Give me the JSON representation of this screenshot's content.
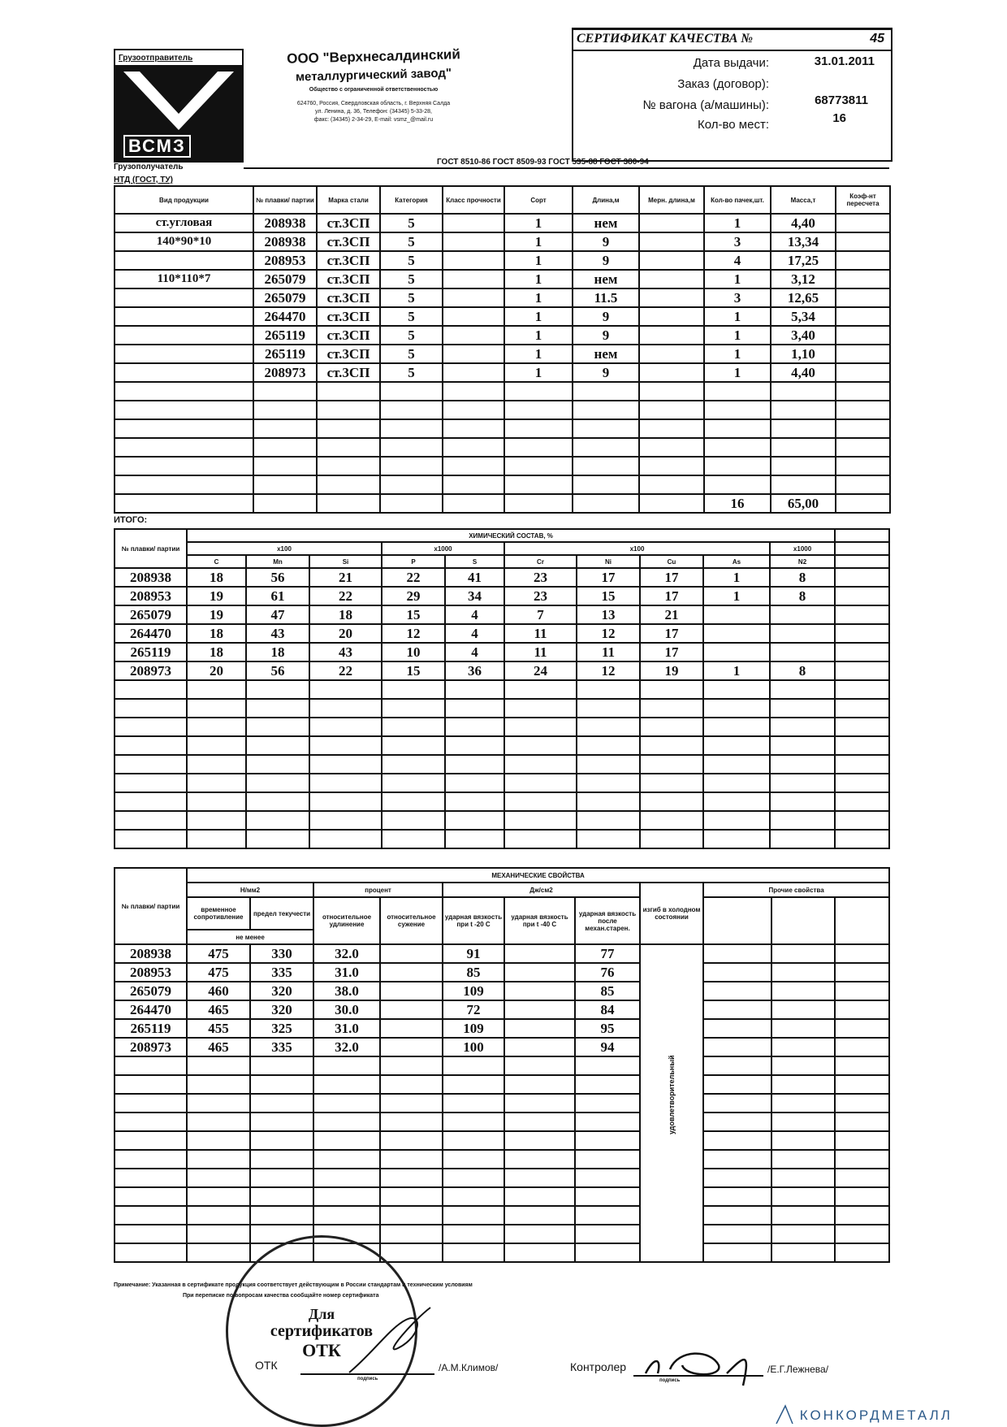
{
  "company": {
    "shipper_label": "Грузоотправитель",
    "logo_text": "ВСМЗ",
    "name_line1": "ООО \"Верхнесалдинский",
    "name_line2": "металлургический завод\"",
    "legal_form": "Общество с ограниченной ответственностью",
    "address_line1": "624760, Россия, Свердловская область, г. Верхняя Салда",
    "address_line2": "ул. Ленина, д. 36, Телефон: (34345) 5-33-28,",
    "address_line3": "факс: (34345) 2-34-29, E-mail: vsmz_@mail.ru"
  },
  "certificate": {
    "title": "СЕРТИФИКАТ КАЧЕСТВА №",
    "number": "45",
    "issue_date_label": "Дата выдачи:",
    "issue_date": "31.01.2011",
    "order_label": "Заказ (договор):",
    "wagon_label": "№ вагона (а/машины):",
    "wagon": "68773811",
    "places_label": "Кол-во мест:",
    "places": "16"
  },
  "consignee_label": "Грузополучатель",
  "ntd_label": "НТД (ГОСТ, ТУ)",
  "ntd_value": "ГОСТ 8510-86 ГОСТ 8509-93 ГОСТ 535-88 ГОСТ 380-94",
  "products": {
    "headers": [
      "Вид продукции",
      "№ плавки/ партии",
      "Марка стали",
      "Категория",
      "Класс прочности",
      "Сорт",
      "Длина,м",
      "Мерн. длина,м",
      "Кол-во пачек,шт.",
      "Масса,т",
      "Коэф-нт пересчета"
    ],
    "rows": [
      [
        "ст.угловая",
        "208938",
        "ст.3СП",
        "5",
        "",
        "1",
        "нем",
        "",
        "1",
        "4,40",
        ""
      ],
      [
        "140*90*10",
        "208938",
        "ст.3СП",
        "5",
        "",
        "1",
        "9",
        "",
        "3",
        "13,34",
        ""
      ],
      [
        "",
        "208953",
        "ст.3СП",
        "5",
        "",
        "1",
        "9",
        "",
        "4",
        "17,25",
        ""
      ],
      [
        "110*110*7",
        "265079",
        "ст.3СП",
        "5",
        "",
        "1",
        "нем",
        "",
        "1",
        "3,12",
        ""
      ],
      [
        "",
        "265079",
        "ст.3СП",
        "5",
        "",
        "1",
        "11.5",
        "",
        "3",
        "12,65",
        ""
      ],
      [
        "",
        "264470",
        "ст.3СП",
        "5",
        "",
        "1",
        "9",
        "",
        "1",
        "5,34",
        ""
      ],
      [
        "",
        "265119",
        "ст.3СП",
        "5",
        "",
        "1",
        "9",
        "",
        "1",
        "3,40",
        ""
      ],
      [
        "",
        "265119",
        "ст.3СП",
        "5",
        "",
        "1",
        "нем",
        "",
        "1",
        "1,10",
        ""
      ],
      [
        "",
        "208973",
        "ст.3СП",
        "5",
        "",
        "1",
        "9",
        "",
        "1",
        "4,40",
        ""
      ]
    ],
    "total_packs": "16",
    "total_mass": "65,00",
    "total_label": "ИТОГО:"
  },
  "chemistry": {
    "title": "ХИМИЧЕСКИЙ СОСТАВ, %",
    "heat_header": "№ плавки/ партии",
    "multipliers": [
      "x100",
      "x1000",
      "x100",
      "x1000"
    ],
    "elements": [
      "C",
      "Mn",
      "Si",
      "P",
      "S",
      "Cr",
      "Ni",
      "Cu",
      "As",
      "N2"
    ],
    "rows": [
      [
        "208938",
        "18",
        "56",
        "21",
        "22",
        "41",
        "23",
        "17",
        "17",
        "1",
        "8"
      ],
      [
        "208953",
        "19",
        "61",
        "22",
        "29",
        "34",
        "23",
        "15",
        "17",
        "1",
        "8"
      ],
      [
        "265079",
        "19",
        "47",
        "18",
        "15",
        "4",
        "7",
        "13",
        "21",
        "",
        ""
      ],
      [
        "264470",
        "18",
        "43",
        "20",
        "12",
        "4",
        "11",
        "12",
        "17",
        "",
        ""
      ],
      [
        "265119",
        "18",
        "18",
        "43",
        "10",
        "4",
        "11",
        "11",
        "17",
        "",
        ""
      ],
      [
        "208973",
        "20",
        "56",
        "22",
        "15",
        "36",
        "24",
        "12",
        "19",
        "1",
        "8"
      ]
    ]
  },
  "mechanics": {
    "title": "МЕХАНИЧЕСКИЕ СВОЙСТВА",
    "heat_header": "№ плавки/ партии",
    "unit_nmm2": "Н/мм2",
    "unit_percent": "процент",
    "unit_jcm2": "Дж/см2",
    "tensile": "временное сопротивление",
    "yield": "предел текучести",
    "not_less": "не менее",
    "elongation": "относительное удлинение",
    "reduction": "относительное сужение",
    "impact1": "ударная вязкость при t -20 С",
    "impact2": "ударная вязкость при t -40 С",
    "impact_aged": "ударная вязкость после механ.старен.",
    "bend": "изгиб в холодном состоянии",
    "other": "Прочие свойства",
    "bend_result": "удовлетворительный",
    "rows": [
      [
        "208938",
        "475",
        "330",
        "32.0",
        "",
        "91",
        "",
        "77"
      ],
      [
        "208953",
        "475",
        "335",
        "31.0",
        "",
        "85",
        "",
        "76"
      ],
      [
        "265079",
        "460",
        "320",
        "38.0",
        "",
        "109",
        "",
        "85"
      ],
      [
        "264470",
        "465",
        "320",
        "30.0",
        "",
        "72",
        "",
        "84"
      ],
      [
        "265119",
        "455",
        "325",
        "31.0",
        "",
        "109",
        "",
        "95"
      ],
      [
        "208973",
        "465",
        "335",
        "32.0",
        "",
        "100",
        "",
        "94"
      ]
    ]
  },
  "footer": {
    "note1": "Примечание: Указанная в сертификате продукция соответствует действующим в России стандартам и техническим условиям",
    "note2": "При переписке по вопросам качества сообщайте номер сертификата",
    "otk_label": "ОТК",
    "otk_name": "/А.М.Климов/",
    "controller_label": "Контролер",
    "controller_name": "/Е.Г.Лежнева/",
    "signature_caption": "подпись",
    "stamp_text1": "Для",
    "stamp_text2": "сертификатов",
    "stamp_text3": "ОТК",
    "watermark": "КОНКОРДМЕТАЛЛ"
  }
}
